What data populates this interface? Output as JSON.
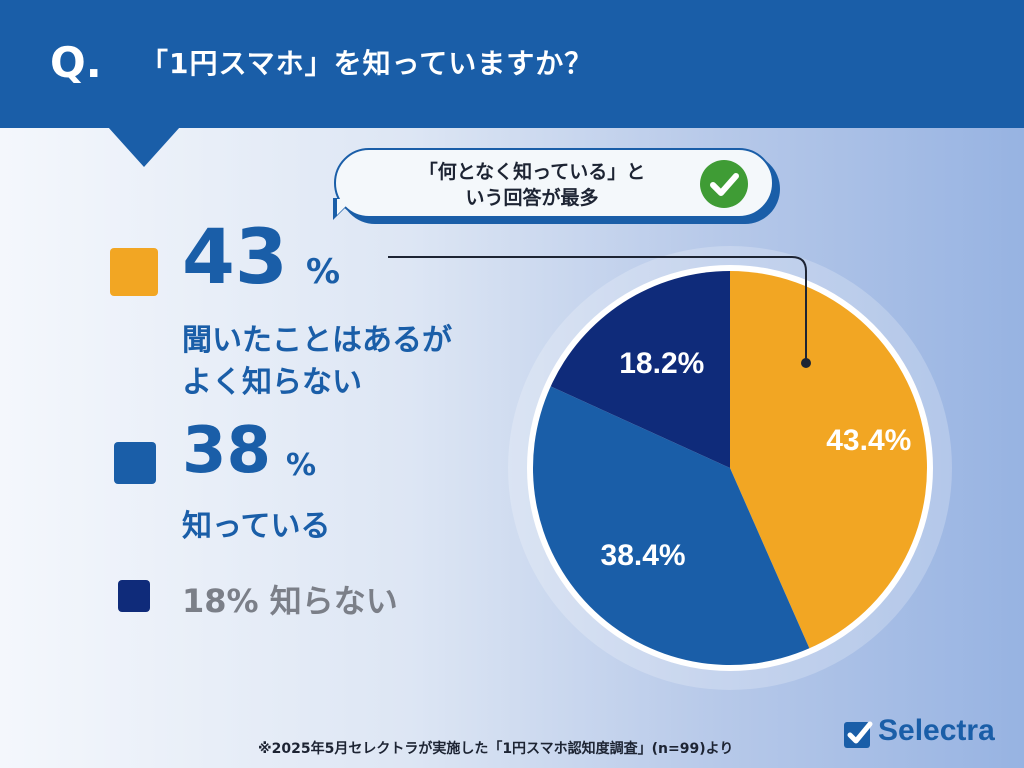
{
  "header": {
    "q_mark": "Q.",
    "title": "「1円スマホ」を知っていますか？",
    "bg_color": "#1a5ea8"
  },
  "callout": {
    "line1": "「何となく知っている」と",
    "line2": "いう回答が最多",
    "icon": "check-icon"
  },
  "legend": [
    {
      "number": "43",
      "unit": "%",
      "label_line1": "聞いたことはあるが",
      "label_line2": "よく知らない",
      "color": "#f2a623"
    },
    {
      "number": "38",
      "unit": "%",
      "label_line1": "知っている",
      "color": "#1a5ea8"
    },
    {
      "text": "18% 知らない",
      "color": "#0f2b7a"
    }
  ],
  "chart_data": {
    "type": "pie",
    "slices": [
      {
        "label": "43.4%",
        "value": 43.4,
        "color": "#f2a623"
      },
      {
        "label": "38.4%",
        "value": 38.4,
        "color": "#1a5ea8"
      },
      {
        "label": "18.2%",
        "value": 18.2,
        "color": "#0f2b7a"
      }
    ],
    "start_angle": "12 o'clock, clockwise"
  },
  "footnote": "※2025年5月セレクトラが実施した「1円スマホ認知度調査」(n=99)より",
  "logo": {
    "text": "Selectra",
    "icon": "checkbox-logo-icon"
  }
}
